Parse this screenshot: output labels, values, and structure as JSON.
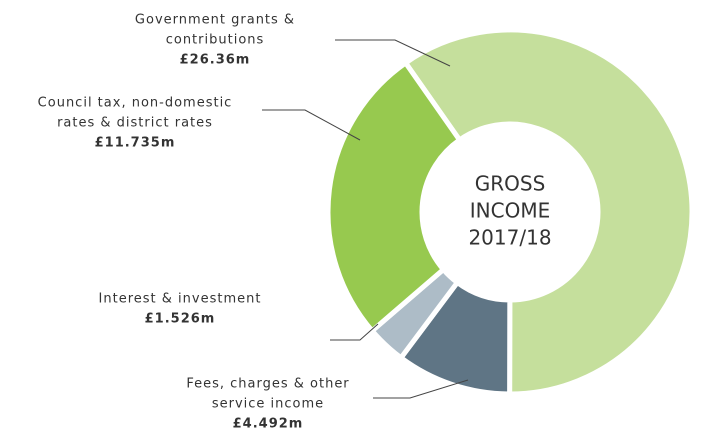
{
  "chart_data": {
    "type": "pie",
    "center_label": [
      "GROSS",
      "INCOME",
      "2017/18"
    ],
    "categories": [
      [
        "Government grants &",
        "contributions"
      ],
      [
        "Fees, charges & other",
        "service income"
      ],
      [
        "Interest & investment"
      ],
      [
        "Council tax, non-domestic",
        "rates & district rates"
      ]
    ],
    "values": [
      26.36,
      4.492,
      1.526,
      11.735
    ],
    "value_labels": [
      "£26.36m",
      "£4.492m",
      "£1.526m",
      "£11.735m"
    ],
    "colors": [
      "#c5df9c",
      "#5f7585",
      "#adbcc7",
      "#97c94f"
    ]
  }
}
